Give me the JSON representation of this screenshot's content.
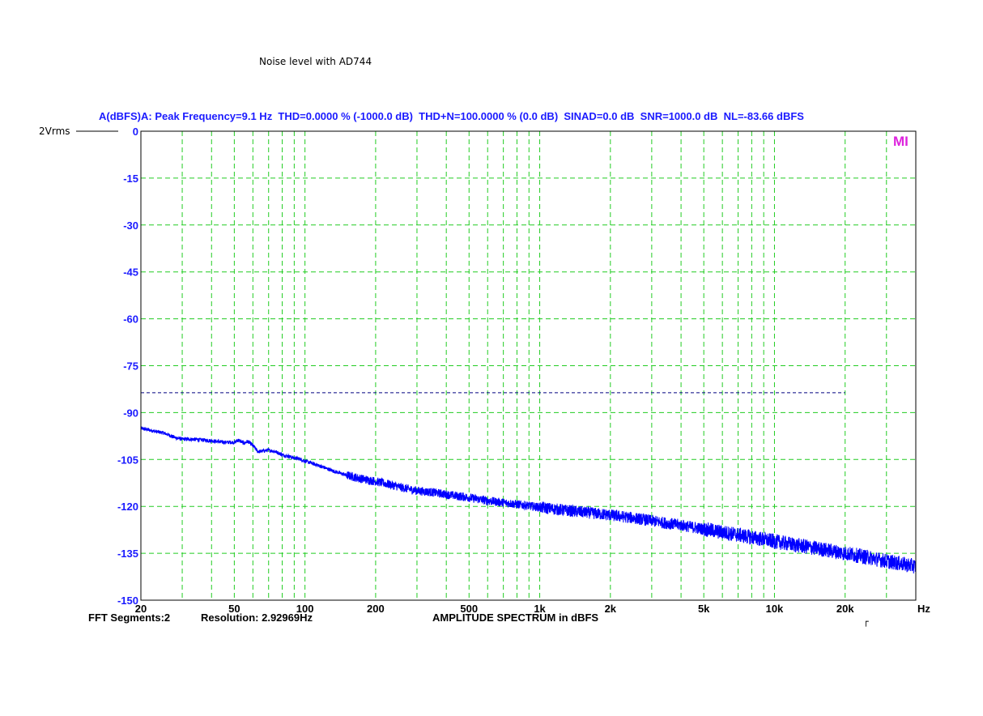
{
  "page_title": "Noise level with AD744",
  "reference_label": "2Vrms",
  "marker_label": "MI",
  "footer": {
    "segments": "FFT Segments:2",
    "resolution": "Resolution: 2.92969Hz",
    "center": "AMPLITUDE SPECTRUM in dBFS",
    "corner_mark": "┌"
  },
  "colors": {
    "grid": "#22cc22",
    "trace": "#0000ff",
    "text_blue": "#1a1aff",
    "noise_line": "#000080",
    "marker": "#dd22dd"
  },
  "chart_data": {
    "type": "line",
    "title": "A(dBFS)A: Peak Frequency=9.1 Hz  THD=0.0000 % (-1000.0 dB)  THD+N=100.0000 % (0.0 dB)  SINAD=0.0 dB  SNR=1000.0 dB  NL=-83.66 dBFS",
    "xlabel": "AMPLITUDE SPECTRUM in dBFS",
    "x_unit": "Hz",
    "x_scale": "log",
    "xlim": [
      20,
      40000
    ],
    "x_ticks": [
      {
        "value": 20,
        "label": "20"
      },
      {
        "value": 50,
        "label": "50"
      },
      {
        "value": 100,
        "label": "100"
      },
      {
        "value": 200,
        "label": "200"
      },
      {
        "value": 500,
        "label": "500"
      },
      {
        "value": 1000,
        "label": "1k"
      },
      {
        "value": 2000,
        "label": "2k"
      },
      {
        "value": 5000,
        "label": "5k"
      },
      {
        "value": 10000,
        "label": "10k"
      },
      {
        "value": 20000,
        "label": "20k"
      }
    ],
    "ylim": [
      -150,
      0
    ],
    "y_ticks": [
      0,
      -15,
      -30,
      -45,
      -60,
      -75,
      -90,
      -105,
      -120,
      -135,
      -150
    ],
    "grid": true,
    "noise_level": {
      "value": -83.66,
      "x_range": [
        20,
        20000
      ]
    },
    "series": [
      {
        "x": [
          20,
          23,
          25,
          28,
          30,
          33,
          36,
          40,
          45,
          50,
          52,
          55,
          57,
          60,
          63,
          66,
          70,
          75,
          80,
          85,
          90,
          95,
          100,
          110,
          120,
          130,
          150,
          170,
          200,
          230,
          260,
          300,
          350,
          400,
          500,
          600,
          700,
          800,
          1000,
          1200,
          1500,
          2000,
          2500,
          3000,
          3500,
          4000,
          5000,
          6000,
          7000,
          8000,
          10000,
          12000,
          15000,
          20000,
          25000,
          30000,
          35000,
          40000
        ],
        "y": [
          -95,
          -96,
          -96.5,
          -98,
          -98.5,
          -98.5,
          -98.7,
          -99,
          -99.5,
          -99.5,
          -98.8,
          -99.8,
          -99.2,
          -100.5,
          -102.5,
          -102.3,
          -102,
          -102.5,
          -103.5,
          -104,
          -104.5,
          -104.8,
          -105.5,
          -106.5,
          -107.5,
          -108.5,
          -110,
          -111,
          -112,
          -113,
          -114,
          -115,
          -115.5,
          -116.2,
          -117.2,
          -118.2,
          -118.8,
          -119.3,
          -120.3,
          -121,
          -121.8,
          -122.8,
          -123.7,
          -124.6,
          -125.4,
          -126,
          -127.3,
          -128.3,
          -129.1,
          -129.9,
          -131.2,
          -132.2,
          -133.4,
          -135,
          -136.3,
          -137.5,
          -138.4,
          -139.2
        ]
      }
    ]
  }
}
